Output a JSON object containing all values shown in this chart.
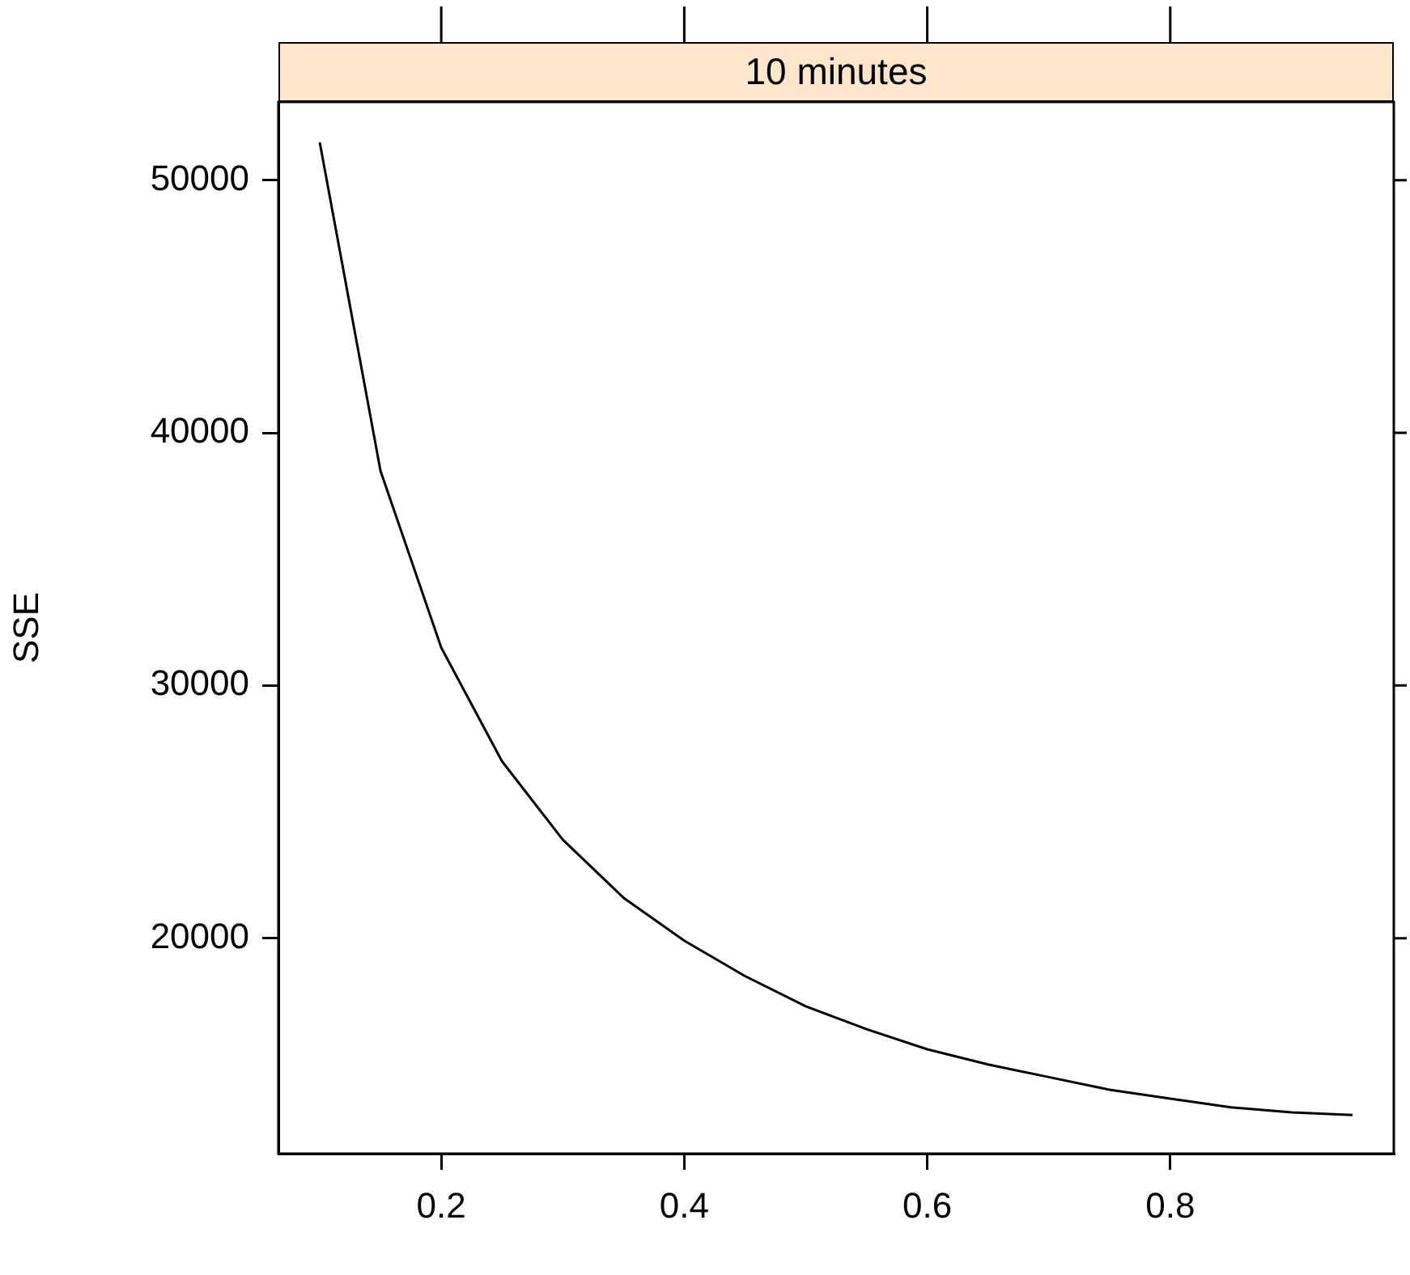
{
  "chart_data": {
    "type": "line",
    "title": "10 minutes",
    "ylabel": "SSE",
    "x": [
      0.1,
      0.15,
      0.2,
      0.25,
      0.3,
      0.35,
      0.4,
      0.45,
      0.5,
      0.55,
      0.6,
      0.65,
      0.7,
      0.75,
      0.8,
      0.85,
      0.9,
      0.95
    ],
    "series": [
      {
        "color": "#000000",
        "values": [
          51500,
          38500,
          31500,
          27000,
          23900,
          21600,
          19900,
          18500,
          17300,
          16400,
          15600,
          15000,
          14500,
          14000,
          13650,
          13300,
          13100,
          13000
        ]
      }
    ],
    "xlim": [
      0.066,
      0.984
    ],
    "xticks": [
      0.2,
      0.4,
      0.6,
      0.8
    ],
    "ylim": [
      11470,
      53100
    ],
    "yticks": [
      20000,
      30000,
      40000,
      50000
    ],
    "grid": false,
    "legend": false,
    "marker": "none",
    "line_style": "solid"
  }
}
